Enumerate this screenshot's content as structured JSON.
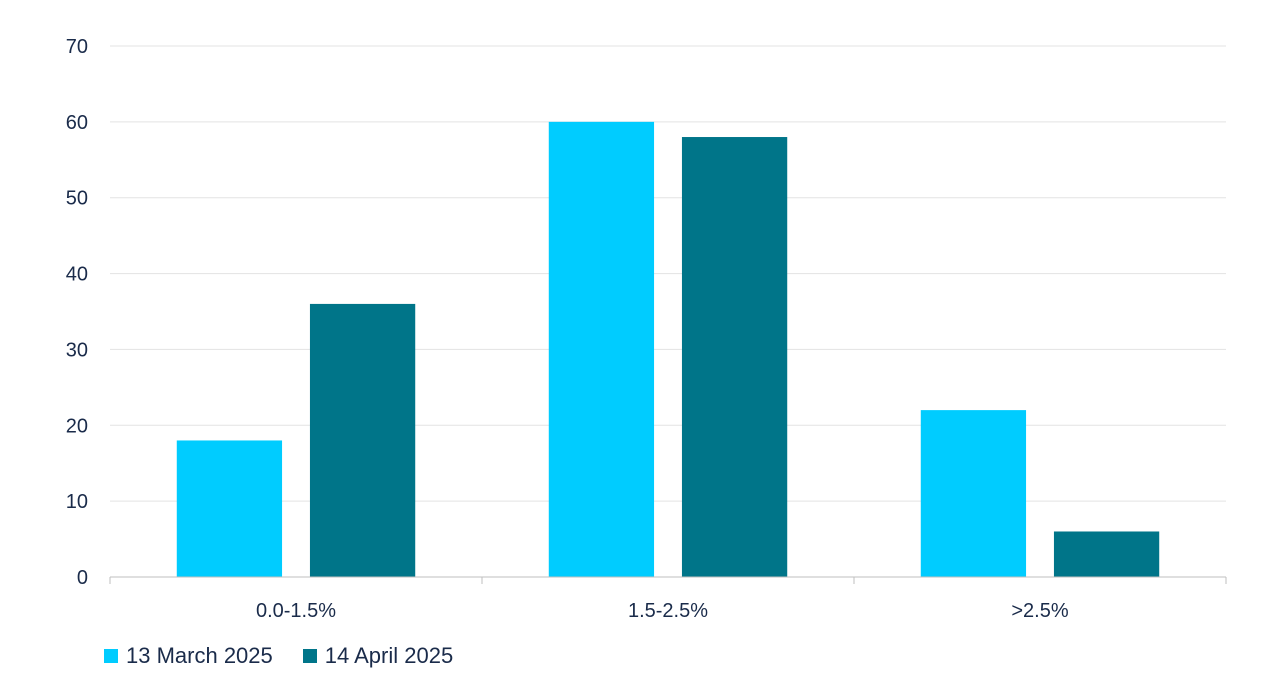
{
  "chart_data": {
    "type": "bar",
    "categories": [
      "0.0-1.5%",
      "1.5-2.5%",
      ">2.5%"
    ],
    "series": [
      {
        "name": "13 March 2025",
        "color": "#00ccff",
        "values": [
          18,
          60,
          22
        ]
      },
      {
        "name": "14 April 2025",
        "color": "#007589",
        "values": [
          36,
          58,
          6
        ]
      }
    ],
    "ylim": [
      0,
      70
    ],
    "yticks": [
      0,
      10,
      20,
      30,
      40,
      50,
      60,
      70
    ],
    "grid": true,
    "legend_position": "bottom-left",
    "title": "",
    "xlabel": "",
    "ylabel": ""
  }
}
